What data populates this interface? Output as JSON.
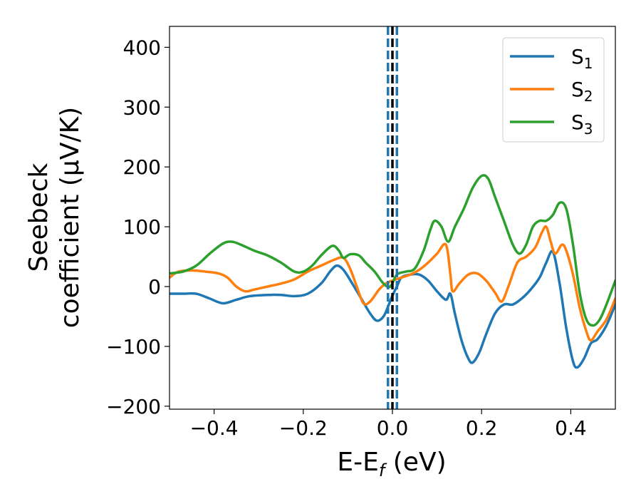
{
  "chart_data": {
    "type": "line",
    "xlabel": "E-E",
    "xlabel_sub": "f",
    "xlabel_unit": " (eV)",
    "ylabel_line1": "Seebeck",
    "ylabel_line2": "coefficient  (μV/K)",
    "xlim": [
      -0.5,
      0.5
    ],
    "ylim": [
      -205,
      435
    ],
    "xticks": [
      -0.4,
      -0.2,
      0.0,
      0.2,
      0.4
    ],
    "xtick_labels": [
      "−0.4",
      "−0.2",
      "0.0",
      "0.2",
      "0.4"
    ],
    "yticks": [
      -200,
      -100,
      0,
      100,
      200,
      300,
      400
    ],
    "ytick_labels": [
      "−200",
      "−100",
      "0",
      "100",
      "200",
      "300",
      "400"
    ],
    "legend_position": "top-right",
    "grid": false,
    "vertical_lines": [
      {
        "x": -0.01,
        "style": "dashed",
        "color": "#1f77b4"
      },
      {
        "x": 0.0,
        "style": "dashed",
        "color": "#000000"
      },
      {
        "x": 0.01,
        "style": "dashed",
        "color": "#1f77b4"
      }
    ],
    "series": [
      {
        "name": "S",
        "subscript": "1",
        "color": "#1f77b4",
        "points": [
          [
            -0.5,
            -12
          ],
          [
            -0.47,
            -12
          ],
          [
            -0.44,
            -12
          ],
          [
            -0.41,
            -20
          ],
          [
            -0.38,
            -28
          ],
          [
            -0.35,
            -22
          ],
          [
            -0.32,
            -16
          ],
          [
            -0.28,
            -14
          ],
          [
            -0.25,
            -14
          ],
          [
            -0.22,
            -16
          ],
          [
            -0.19,
            -12
          ],
          [
            -0.16,
            5
          ],
          [
            -0.14,
            25
          ],
          [
            -0.125,
            35
          ],
          [
            -0.11,
            28
          ],
          [
            -0.09,
            5
          ],
          [
            -0.07,
            -20
          ],
          [
            -0.05,
            -45
          ],
          [
            -0.035,
            -57
          ],
          [
            -0.02,
            -50
          ],
          [
            -0.008,
            -30
          ],
          [
            0.0,
            -15
          ],
          [
            0.01,
            0
          ],
          [
            0.02,
            15
          ],
          [
            0.04,
            20
          ],
          [
            0.06,
            20
          ],
          [
            0.08,
            10
          ],
          [
            0.1,
            -8
          ],
          [
            0.12,
            -22
          ],
          [
            0.13,
            -12
          ],
          [
            0.14,
            -45
          ],
          [
            0.155,
            -90
          ],
          [
            0.17,
            -120
          ],
          [
            0.18,
            -127
          ],
          [
            0.195,
            -110
          ],
          [
            0.21,
            -80
          ],
          [
            0.23,
            -45
          ],
          [
            0.25,
            -30
          ],
          [
            0.27,
            -30
          ],
          [
            0.29,
            -20
          ],
          [
            0.31,
            -5
          ],
          [
            0.33,
            15
          ],
          [
            0.345,
            40
          ],
          [
            0.36,
            58
          ],
          [
            0.375,
            5
          ],
          [
            0.39,
            -70
          ],
          [
            0.405,
            -125
          ],
          [
            0.415,
            -135
          ],
          [
            0.43,
            -120
          ],
          [
            0.445,
            -95
          ],
          [
            0.46,
            -88
          ],
          [
            0.48,
            -65
          ],
          [
            0.5,
            -30
          ]
        ]
      },
      {
        "name": "S",
        "subscript": "2",
        "color": "#ff7f0e",
        "points": [
          [
            -0.5,
            15
          ],
          [
            -0.48,
            25
          ],
          [
            -0.45,
            27
          ],
          [
            -0.42,
            25
          ],
          [
            -0.39,
            22
          ],
          [
            -0.37,
            15
          ],
          [
            -0.35,
            0
          ],
          [
            -0.33,
            -8
          ],
          [
            -0.31,
            -5
          ],
          [
            -0.28,
            0
          ],
          [
            -0.25,
            5
          ],
          [
            -0.22,
            12
          ],
          [
            -0.19,
            25
          ],
          [
            -0.16,
            35
          ],
          [
            -0.13,
            45
          ],
          [
            -0.11,
            48
          ],
          [
            -0.095,
            30
          ],
          [
            -0.08,
            0
          ],
          [
            -0.065,
            -28
          ],
          [
            -0.05,
            -25
          ],
          [
            -0.03,
            -5
          ],
          [
            -0.015,
            5
          ],
          [
            0.0,
            10
          ],
          [
            0.02,
            15
          ],
          [
            0.04,
            20
          ],
          [
            0.06,
            28
          ],
          [
            0.08,
            40
          ],
          [
            0.1,
            55
          ],
          [
            0.12,
            70
          ],
          [
            0.13,
            20
          ],
          [
            0.135,
            -8
          ],
          [
            0.15,
            5
          ],
          [
            0.17,
            20
          ],
          [
            0.19,
            22
          ],
          [
            0.21,
            10
          ],
          [
            0.23,
            -10
          ],
          [
            0.245,
            -25
          ],
          [
            0.26,
            0
          ],
          [
            0.28,
            40
          ],
          [
            0.3,
            50
          ],
          [
            0.32,
            65
          ],
          [
            0.335,
            90
          ],
          [
            0.345,
            100
          ],
          [
            0.355,
            75
          ],
          [
            0.365,
            55
          ],
          [
            0.38,
            70
          ],
          [
            0.39,
            60
          ],
          [
            0.405,
            20
          ],
          [
            0.42,
            -35
          ],
          [
            0.435,
            -75
          ],
          [
            0.445,
            -90
          ],
          [
            0.46,
            -75
          ],
          [
            0.48,
            -55
          ],
          [
            0.5,
            -20
          ]
        ]
      },
      {
        "name": "S",
        "subscript": "3",
        "color": "#2ca02c",
        "points": [
          [
            -0.5,
            22
          ],
          [
            -0.47,
            25
          ],
          [
            -0.44,
            35
          ],
          [
            -0.41,
            55
          ],
          [
            -0.38,
            72
          ],
          [
            -0.36,
            75
          ],
          [
            -0.34,
            70
          ],
          [
            -0.31,
            60
          ],
          [
            -0.28,
            52
          ],
          [
            -0.25,
            40
          ],
          [
            -0.22,
            25
          ],
          [
            -0.2,
            25
          ],
          [
            -0.18,
            35
          ],
          [
            -0.16,
            52
          ],
          [
            -0.135,
            68
          ],
          [
            -0.12,
            60
          ],
          [
            -0.11,
            48
          ],
          [
            -0.095,
            54
          ],
          [
            -0.075,
            52
          ],
          [
            -0.06,
            40
          ],
          [
            -0.04,
            25
          ],
          [
            -0.02,
            5
          ],
          [
            -0.005,
            0
          ],
          [
            0.01,
            20
          ],
          [
            0.03,
            25
          ],
          [
            0.05,
            30
          ],
          [
            0.07,
            60
          ],
          [
            0.085,
            95
          ],
          [
            0.095,
            110
          ],
          [
            0.11,
            100
          ],
          [
            0.125,
            75
          ],
          [
            0.14,
            100
          ],
          [
            0.16,
            130
          ],
          [
            0.18,
            165
          ],
          [
            0.2,
            185
          ],
          [
            0.215,
            180
          ],
          [
            0.23,
            150
          ],
          [
            0.25,
            110
          ],
          [
            0.27,
            70
          ],
          [
            0.285,
            55
          ],
          [
            0.3,
            70
          ],
          [
            0.315,
            100
          ],
          [
            0.33,
            110
          ],
          [
            0.345,
            110
          ],
          [
            0.36,
            120
          ],
          [
            0.375,
            140
          ],
          [
            0.39,
            130
          ],
          [
            0.405,
            70
          ],
          [
            0.42,
            -10
          ],
          [
            0.435,
            -55
          ],
          [
            0.45,
            -65
          ],
          [
            0.465,
            -55
          ],
          [
            0.48,
            -30
          ],
          [
            0.5,
            10
          ]
        ]
      }
    ]
  }
}
